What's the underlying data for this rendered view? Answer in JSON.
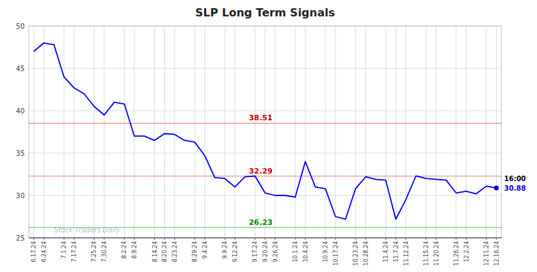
{
  "chart_data": {
    "type": "line",
    "title": "SLP Long Term Signals",
    "color": "blue",
    "grid": true,
    "ylim": [
      25,
      50
    ],
    "yticks": [
      25,
      30,
      35,
      40,
      45,
      50
    ],
    "categories": [
      "6.17.24",
      "6.24.24",
      null,
      "7.1.24",
      "7.17.24",
      null,
      "7.25.24",
      "7.30.24",
      null,
      "8.2.24",
      "8.9.24",
      null,
      "8.14.24",
      "8.20.24",
      "8.23.24",
      null,
      "8.29.24",
      "9.4.24",
      null,
      "9.9.24",
      "9.12.24",
      null,
      "9.17.24",
      "9.20.24",
      "9.26.24",
      null,
      "10.1.24",
      "10.4.24",
      null,
      "10.9.24",
      "10.17.24",
      null,
      "10.23.24",
      "10.28.24",
      null,
      "11.4.24",
      "11.7.24",
      "11.12.24",
      null,
      "11.15.24",
      "11.20.24",
      null,
      "11.26.24",
      "12.2.24",
      null,
      "12.11.24",
      "12.16.24"
    ],
    "values": [
      47.0,
      48.0,
      47.8,
      44.0,
      42.7,
      42.0,
      40.5,
      39.5,
      41.0,
      40.8,
      37.0,
      37.0,
      36.5,
      37.3,
      37.2,
      36.5,
      36.3,
      34.7,
      32.1,
      32.0,
      31.0,
      32.2,
      32.3,
      30.3,
      30.0,
      30.0,
      29.8,
      34.0,
      31.0,
      30.8,
      27.5,
      27.2,
      30.8,
      32.2,
      31.9,
      31.8,
      27.2,
      29.5,
      32.3,
      32.0,
      31.9,
      31.8,
      30.3,
      30.5,
      30.2,
      31.1,
      30.88
    ],
    "reference_lines": [
      {
        "value": 38.51,
        "label": "38.51",
        "color": "#cc0000"
      },
      {
        "value": 32.29,
        "label": "32.29",
        "color": "#cc0000"
      },
      {
        "value": 26.23,
        "label": "26.23",
        "color": "#008800"
      }
    ],
    "annotations": [
      {
        "text": "16:00",
        "color": "black"
      },
      {
        "text": "30.88",
        "color": "blue"
      },
      {
        "text": "Stock Traders Daily",
        "color": "#aaaaaa"
      }
    ]
  }
}
